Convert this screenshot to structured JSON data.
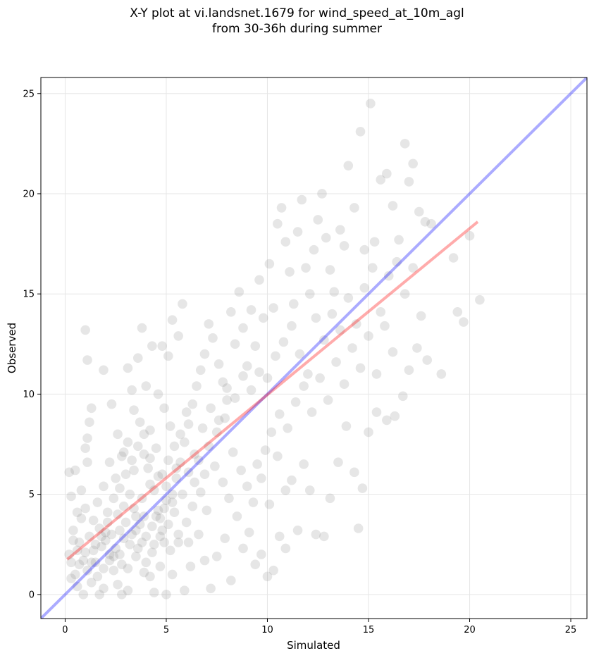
{
  "chart_data": {
    "type": "scatter",
    "title": "X-Y plot at vi.landsnet.1679 for wind_speed_at_10m_agl",
    "subtitle": "from 30-36h during summer",
    "xlabel": "Simulated",
    "ylabel": "Observed",
    "xlim": [
      -1.2,
      25.8
    ],
    "ylim": [
      -1.2,
      25.8
    ],
    "xticks": [
      0,
      5,
      10,
      15,
      20,
      25
    ],
    "yticks": [
      0,
      5,
      10,
      15,
      20,
      25
    ],
    "grid": true,
    "points": [
      [
        0.2,
        6.1
      ],
      [
        0.5,
        6.2
      ],
      [
        0.3,
        4.9
      ],
      [
        0.8,
        5.2
      ],
      [
        0.6,
        4.1
      ],
      [
        1.0,
        13.2
      ],
      [
        1.1,
        11.7
      ],
      [
        1.0,
        7.3
      ],
      [
        1.1,
        7.8
      ],
      [
        1.2,
        8.6
      ],
      [
        1.3,
        9.3
      ],
      [
        1.1,
        6.6
      ],
      [
        0.4,
        3.2
      ],
      [
        0.7,
        2.6
      ],
      [
        0.2,
        2.0
      ],
      [
        0.3,
        0.8
      ],
      [
        0.6,
        0.4
      ],
      [
        0.9,
        0.0
      ],
      [
        1.1,
        1.2
      ],
      [
        1.3,
        0.6
      ],
      [
        1.7,
        0.0
      ],
      [
        1.9,
        0.3
      ],
      [
        1.5,
        1.6
      ],
      [
        1.8,
        2.4
      ],
      [
        2.0,
        3.1
      ],
      [
        2.2,
        2.0
      ],
      [
        2.4,
        1.2
      ],
      [
        2.6,
        0.5
      ],
      [
        2.8,
        0.0
      ],
      [
        3.1,
        0.2
      ],
      [
        1.9,
        11.2
      ],
      [
        2.3,
        9.5
      ],
      [
        2.6,
        8.0
      ],
      [
        2.9,
        7.1
      ],
      [
        3.1,
        11.3
      ],
      [
        3.3,
        10.2
      ],
      [
        3.6,
        11.8
      ],
      [
        3.8,
        13.3
      ],
      [
        4.0,
        10.4
      ],
      [
        4.3,
        12.4
      ],
      [
        4.6,
        10.0
      ],
      [
        4.8,
        12.4
      ],
      [
        5.1,
        11.9
      ],
      [
        5.3,
        13.7
      ],
      [
        5.6,
        12.9
      ],
      [
        5.8,
        14.5
      ],
      [
        5.2,
        8.4
      ],
      [
        4.9,
        9.3
      ],
      [
        4.2,
        8.2
      ],
      [
        3.9,
        7.0
      ],
      [
        3.4,
        6.2
      ],
      [
        3.2,
        5.0
      ],
      [
        2.9,
        4.4
      ],
      [
        2.7,
        3.2
      ],
      [
        3.5,
        3.9
      ],
      [
        3.8,
        2.6
      ],
      [
        4.0,
        1.6
      ],
      [
        4.2,
        0.9
      ],
      [
        4.4,
        0.1
      ],
      [
        4.7,
        1.4
      ],
      [
        4.9,
        2.6
      ],
      [
        5.1,
        3.5
      ],
      [
        5.3,
        4.6
      ],
      [
        5.5,
        5.8
      ],
      [
        5.7,
        6.6
      ],
      [
        5.9,
        7.6
      ],
      [
        6.1,
        8.5
      ],
      [
        6.3,
        9.5
      ],
      [
        6.5,
        10.4
      ],
      [
        6.7,
        11.2
      ],
      [
        6.9,
        12.0
      ],
      [
        7.1,
        13.5
      ],
      [
        7.3,
        12.8
      ],
      [
        7.6,
        11.5
      ],
      [
        7.8,
        10.6
      ],
      [
        8.0,
        9.7
      ],
      [
        8.2,
        14.1
      ],
      [
        8.4,
        12.5
      ],
      [
        8.6,
        15.1
      ],
      [
        8.8,
        13.3
      ],
      [
        9.0,
        11.4
      ],
      [
        9.2,
        14.2
      ],
      [
        9.4,
        12.4
      ],
      [
        9.6,
        15.7
      ],
      [
        9.8,
        13.8
      ],
      [
        10.1,
        16.5
      ],
      [
        10.3,
        14.3
      ],
      [
        10.5,
        18.5
      ],
      [
        10.7,
        19.3
      ],
      [
        10.9,
        17.6
      ],
      [
        11.1,
        16.1
      ],
      [
        11.3,
        14.5
      ],
      [
        11.5,
        18.1
      ],
      [
        11.7,
        19.7
      ],
      [
        11.9,
        16.3
      ],
      [
        12.1,
        15.0
      ],
      [
        12.3,
        17.2
      ],
      [
        12.5,
        18.7
      ],
      [
        12.7,
        20.0
      ],
      [
        12.9,
        17.8
      ],
      [
        13.1,
        16.2
      ],
      [
        13.3,
        15.1
      ],
      [
        13.6,
        18.2
      ],
      [
        13.8,
        17.4
      ],
      [
        14.0,
        21.4
      ],
      [
        14.3,
        19.3
      ],
      [
        14.6,
        23.1
      ],
      [
        14.8,
        17.2
      ],
      [
        15.1,
        24.5
      ],
      [
        15.3,
        17.6
      ],
      [
        15.6,
        20.7
      ],
      [
        15.9,
        21.0
      ],
      [
        16.2,
        19.4
      ],
      [
        16.5,
        17.7
      ],
      [
        16.8,
        22.5
      ],
      [
        17.0,
        20.6
      ],
      [
        17.2,
        21.5
      ],
      [
        17.5,
        19.1
      ],
      [
        17.8,
        18.6
      ],
      [
        18.1,
        18.5
      ],
      [
        18.6,
        11.0
      ],
      [
        19.2,
        16.8
      ],
      [
        19.4,
        14.1
      ],
      [
        19.7,
        13.6
      ],
      [
        20.0,
        17.9
      ],
      [
        20.5,
        14.7
      ],
      [
        17.9,
        11.7
      ],
      [
        17.4,
        12.3
      ],
      [
        17.0,
        11.2
      ],
      [
        16.7,
        9.9
      ],
      [
        16.3,
        8.9
      ],
      [
        15.9,
        8.7
      ],
      [
        15.4,
        9.1
      ],
      [
        15.0,
        8.1
      ],
      [
        14.7,
        5.3
      ],
      [
        14.5,
        3.3
      ],
      [
        14.3,
        6.1
      ],
      [
        13.9,
        8.4
      ],
      [
        13.5,
        6.6
      ],
      [
        13.1,
        4.8
      ],
      [
        12.8,
        2.9
      ],
      [
        12.4,
        3.0
      ],
      [
        12.1,
        5.2
      ],
      [
        11.8,
        6.5
      ],
      [
        11.5,
        3.2
      ],
      [
        11.2,
        5.7
      ],
      [
        10.9,
        2.3
      ],
      [
        10.6,
        2.9
      ],
      [
        10.3,
        1.2
      ],
      [
        10.0,
        0.9
      ],
      [
        9.7,
        2.0
      ],
      [
        9.4,
        1.5
      ],
      [
        9.1,
        3.1
      ],
      [
        8.8,
        2.3
      ],
      [
        8.5,
        3.9
      ],
      [
        8.2,
        0.7
      ],
      [
        7.9,
        2.8
      ],
      [
        7.5,
        1.9
      ],
      [
        7.2,
        0.3
      ],
      [
        6.9,
        1.7
      ],
      [
        6.6,
        3.0
      ],
      [
        6.2,
        1.4
      ],
      [
        5.9,
        0.2
      ],
      [
        5.6,
        2.6
      ],
      [
        5.3,
        1.0
      ],
      [
        5.0,
        0.0
      ],
      [
        4.7,
        3.8
      ],
      [
        4.4,
        5.2
      ],
      [
        4.1,
        6.3
      ],
      [
        3.7,
        8.6
      ],
      [
        3.4,
        9.2
      ],
      [
        3.1,
        7.6
      ],
      [
        2.8,
        6.9
      ],
      [
        2.5,
        5.8
      ],
      [
        2.2,
        6.6
      ],
      [
        1.9,
        5.4
      ],
      [
        1.6,
        4.6
      ],
      [
        1.4,
        3.7
      ],
      [
        1.2,
        2.9
      ],
      [
        1.0,
        4.3
      ],
      [
        0.8,
        3.8
      ],
      [
        0.6,
        2.2
      ],
      [
        0.9,
        1.7
      ],
      [
        1.4,
        2.2
      ],
      [
        1.7,
        3.3
      ],
      [
        2.1,
        4.1
      ],
      [
        2.4,
        4.8
      ],
      [
        2.7,
        5.3
      ],
      [
        3.0,
        6.0
      ],
      [
        3.3,
        6.7
      ],
      [
        3.6,
        7.4
      ],
      [
        3.9,
        8.0
      ],
      [
        4.2,
        6.8
      ],
      [
        4.5,
        7.3
      ],
      [
        4.8,
        6.0
      ],
      [
        5.1,
        6.7
      ],
      [
        5.4,
        7.4
      ],
      [
        5.7,
        8.0
      ],
      [
        6.0,
        9.1
      ],
      [
        6.4,
        7.0
      ],
      [
        6.8,
        8.3
      ],
      [
        7.2,
        9.3
      ],
      [
        7.6,
        8.7
      ],
      [
        8.0,
        10.3
      ],
      [
        8.4,
        9.8
      ],
      [
        8.8,
        10.9
      ],
      [
        9.2,
        10.2
      ],
      [
        9.6,
        11.1
      ],
      [
        10.0,
        10.8
      ],
      [
        10.4,
        11.9
      ],
      [
        10.8,
        12.6
      ],
      [
        11.2,
        13.4
      ],
      [
        11.6,
        12.0
      ],
      [
        12.0,
        11.0
      ],
      [
        12.4,
        13.8
      ],
      [
        12.8,
        12.7
      ],
      [
        13.2,
        14.0
      ],
      [
        13.6,
        13.2
      ],
      [
        14.0,
        14.8
      ],
      [
        14.4,
        13.5
      ],
      [
        14.8,
        15.3
      ],
      [
        15.2,
        16.3
      ],
      [
        15.6,
        14.1
      ],
      [
        16.0,
        15.9
      ],
      [
        16.4,
        16.6
      ],
      [
        16.8,
        15.0
      ],
      [
        17.2,
        16.3
      ],
      [
        17.6,
        13.9
      ],
      [
        9.5,
        6.5
      ],
      [
        9.9,
        7.2
      ],
      [
        10.2,
        8.1
      ],
      [
        10.6,
        9.0
      ],
      [
        11.0,
        8.3
      ],
      [
        11.4,
        9.6
      ],
      [
        11.8,
        10.4
      ],
      [
        12.2,
        9.1
      ],
      [
        12.6,
        10.8
      ],
      [
        13.0,
        9.7
      ],
      [
        13.4,
        11.6
      ],
      [
        13.8,
        10.5
      ],
      [
        14.2,
        12.3
      ],
      [
        14.6,
        11.3
      ],
      [
        15.0,
        12.9
      ],
      [
        15.4,
        11.0
      ],
      [
        15.8,
        13.4
      ],
      [
        16.2,
        12.1
      ],
      [
        8.3,
        7.1
      ],
      [
        8.7,
        6.2
      ],
      [
        9.0,
        5.4
      ],
      [
        9.3,
        4.6
      ],
      [
        9.7,
        5.8
      ],
      [
        10.1,
        4.5
      ],
      [
        10.5,
        6.9
      ],
      [
        10.9,
        5.2
      ],
      [
        7.4,
        6.4
      ],
      [
        7.8,
        5.6
      ],
      [
        8.1,
        4.8
      ],
      [
        7.0,
        4.2
      ],
      [
        6.7,
        5.1
      ],
      [
        6.3,
        4.4
      ],
      [
        6.0,
        3.6
      ],
      [
        5.8,
        5.0
      ],
      [
        5.4,
        4.1
      ],
      [
        5.0,
        4.7
      ],
      [
        4.6,
        4.2
      ],
      [
        4.3,
        3.4
      ],
      [
        3.9,
        3.9
      ],
      [
        3.5,
        3.2
      ],
      [
        3.2,
        2.5
      ],
      [
        2.9,
        2.8
      ],
      [
        2.5,
        2.3
      ],
      [
        2.2,
        1.7
      ],
      [
        1.9,
        1.3
      ],
      [
        1.6,
        0.9
      ],
      [
        1.3,
        1.6
      ],
      [
        1.0,
        2.1
      ],
      [
        0.7,
        1.5
      ],
      [
        0.5,
        1.0
      ],
      [
        0.3,
        1.6
      ],
      [
        0.4,
        2.7
      ],
      [
        2.1,
        3.6
      ],
      [
        2.6,
        4.0
      ],
      [
        3.0,
        3.6
      ],
      [
        3.4,
        4.3
      ],
      [
        3.8,
        4.8
      ],
      [
        4.2,
        5.5
      ],
      [
        4.6,
        5.9
      ],
      [
        5.0,
        5.4
      ],
      [
        5.5,
        6.3
      ],
      [
        6.1,
        6.1
      ],
      [
        6.6,
        6.7
      ],
      [
        7.1,
        7.4
      ],
      [
        7.5,
        8.1
      ],
      [
        7.9,
        8.8
      ],
      [
        6.4,
        5.6
      ],
      [
        6.9,
        6.0
      ],
      [
        3.1,
        1.3
      ],
      [
        3.5,
        1.9
      ],
      [
        3.9,
        1.1
      ],
      [
        4.3,
        2.1
      ],
      [
        4.7,
        2.9
      ],
      [
        5.2,
        2.2
      ],
      [
        5.6,
        3.0
      ],
      [
        6.1,
        2.6
      ],
      [
        2.0,
        2.7
      ],
      [
        2.3,
        3.0
      ],
      [
        2.7,
        2.0
      ],
      [
        3.3,
        3.0
      ],
      [
        3.7,
        3.5
      ],
      [
        4.5,
        3.9
      ],
      [
        4.9,
        4.3
      ],
      [
        5.3,
        5.0
      ],
      [
        1.5,
        2.5
      ],
      [
        1.8,
        2.9
      ],
      [
        2.4,
        1.9
      ],
      [
        2.8,
        1.5
      ],
      [
        3.6,
        2.3
      ],
      [
        4.0,
        2.9
      ],
      [
        4.4,
        2.5
      ],
      [
        4.8,
        3.2
      ]
    ],
    "fit_line": {
      "x": [
        0.1,
        20.4
      ],
      "y": [
        1.75,
        18.6
      ],
      "color": "#ff0000"
    },
    "identity_line": {
      "x": [
        -1.2,
        25.8
      ],
      "y": [
        -1.2,
        25.8
      ],
      "color": "#0000ff"
    },
    "point_color": "#808080"
  }
}
